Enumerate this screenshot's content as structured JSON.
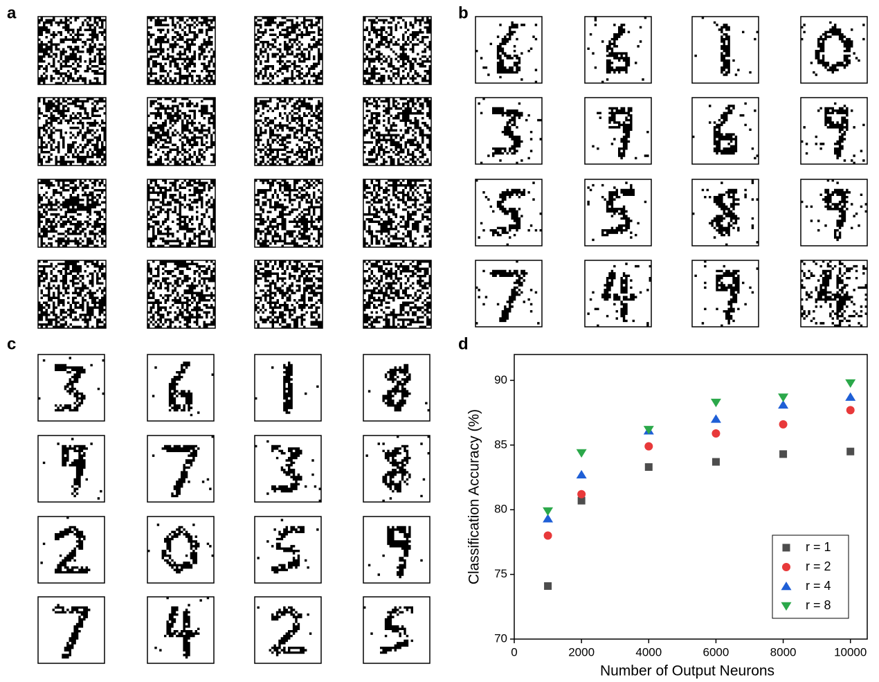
{
  "panel_labels": [
    "a",
    "b",
    "c",
    "d"
  ],
  "chart_data": {
    "type": "scatter",
    "x_label": "Number of Output Neurons",
    "y_label": "Classification Accuracy (%)",
    "x": [
      1000,
      2000,
      4000,
      6000,
      8000,
      10000
    ],
    "series": [
      {
        "name": "r = 1",
        "color": "#4d4d4d",
        "marker": "square",
        "values": [
          74.1,
          80.7,
          83.3,
          83.7,
          84.3,
          84.5
        ]
      },
      {
        "name": "r = 2",
        "color": "#e8393a",
        "marker": "circle",
        "values": [
          78.0,
          81.2,
          84.9,
          85.9,
          86.6,
          87.7
        ]
      },
      {
        "name": "r = 4",
        "color": "#1f5fd6",
        "marker": "triangle-up",
        "values": [
          79.3,
          82.7,
          86.1,
          87.0,
          88.1,
          88.7
        ]
      },
      {
        "name": "r = 8",
        "color": "#2ba84a",
        "marker": "triangle-down",
        "values": [
          79.9,
          84.4,
          86.2,
          88.3,
          88.7,
          89.8
        ]
      }
    ],
    "xlim": [
      0,
      10500
    ],
    "xticks": [
      0,
      2000,
      4000,
      6000,
      8000,
      10000
    ],
    "ylim": [
      70,
      92
    ],
    "yticks": [
      70,
      75,
      80,
      85,
      90
    ],
    "legend": "lower right"
  }
}
